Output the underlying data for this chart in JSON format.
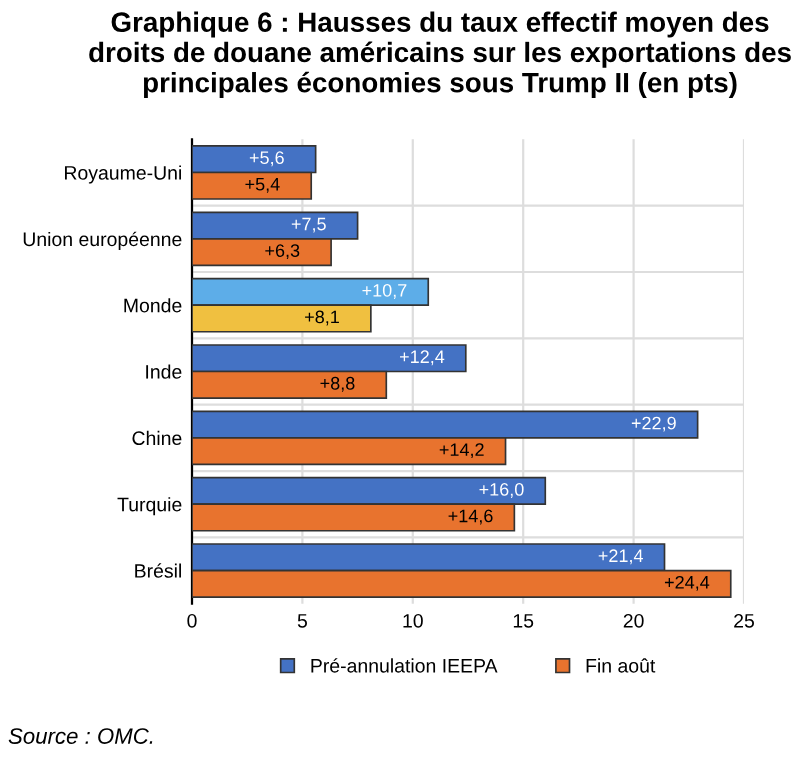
{
  "chart_data": {
    "type": "bar",
    "orientation": "horizontal",
    "title": "Graphique 6 : Hausses du taux effectif moyen des droits de douane américains sur les exportations des principales économies sous Trump II (en pts)",
    "categories": [
      "Royaume-Uni",
      "Union européenne",
      "Monde",
      "Inde",
      "Chine",
      "Turquie",
      "Brésil"
    ],
    "series": [
      {
        "name": "Pré-annulation IEEPA",
        "color": "#4472c4",
        "colors": [
          "#4472c4",
          "#4472c4",
          "#5dade8",
          "#4472c4",
          "#4472c4",
          "#4472c4",
          "#4472c4"
        ],
        "values": [
          5.6,
          7.5,
          10.7,
          12.4,
          22.9,
          16.0,
          21.4
        ],
        "value_labels": [
          "+5,6",
          "+7,5",
          "+10,7",
          "+12,4",
          "+22,9",
          "+16,0",
          "+21,4"
        ]
      },
      {
        "name": "Fin août",
        "color": "#e8732e",
        "colors": [
          "#e8732e",
          "#e8732e",
          "#f0c040",
          "#e8732e",
          "#e8732e",
          "#e8732e",
          "#e8732e"
        ],
        "values": [
          5.4,
          6.3,
          8.1,
          8.8,
          14.2,
          14.6,
          24.4
        ],
        "value_labels": [
          "+5,4",
          "+6,3",
          "+8,1",
          "+8,8",
          "+14,2",
          "+14,6",
          "+24,4"
        ]
      }
    ],
    "xlim": [
      0,
      25
    ],
    "xticks": [
      0,
      5,
      10,
      15,
      20,
      25
    ],
    "grid": true,
    "legend": "bottom",
    "annotations": [
      "Source : OMC."
    ]
  }
}
